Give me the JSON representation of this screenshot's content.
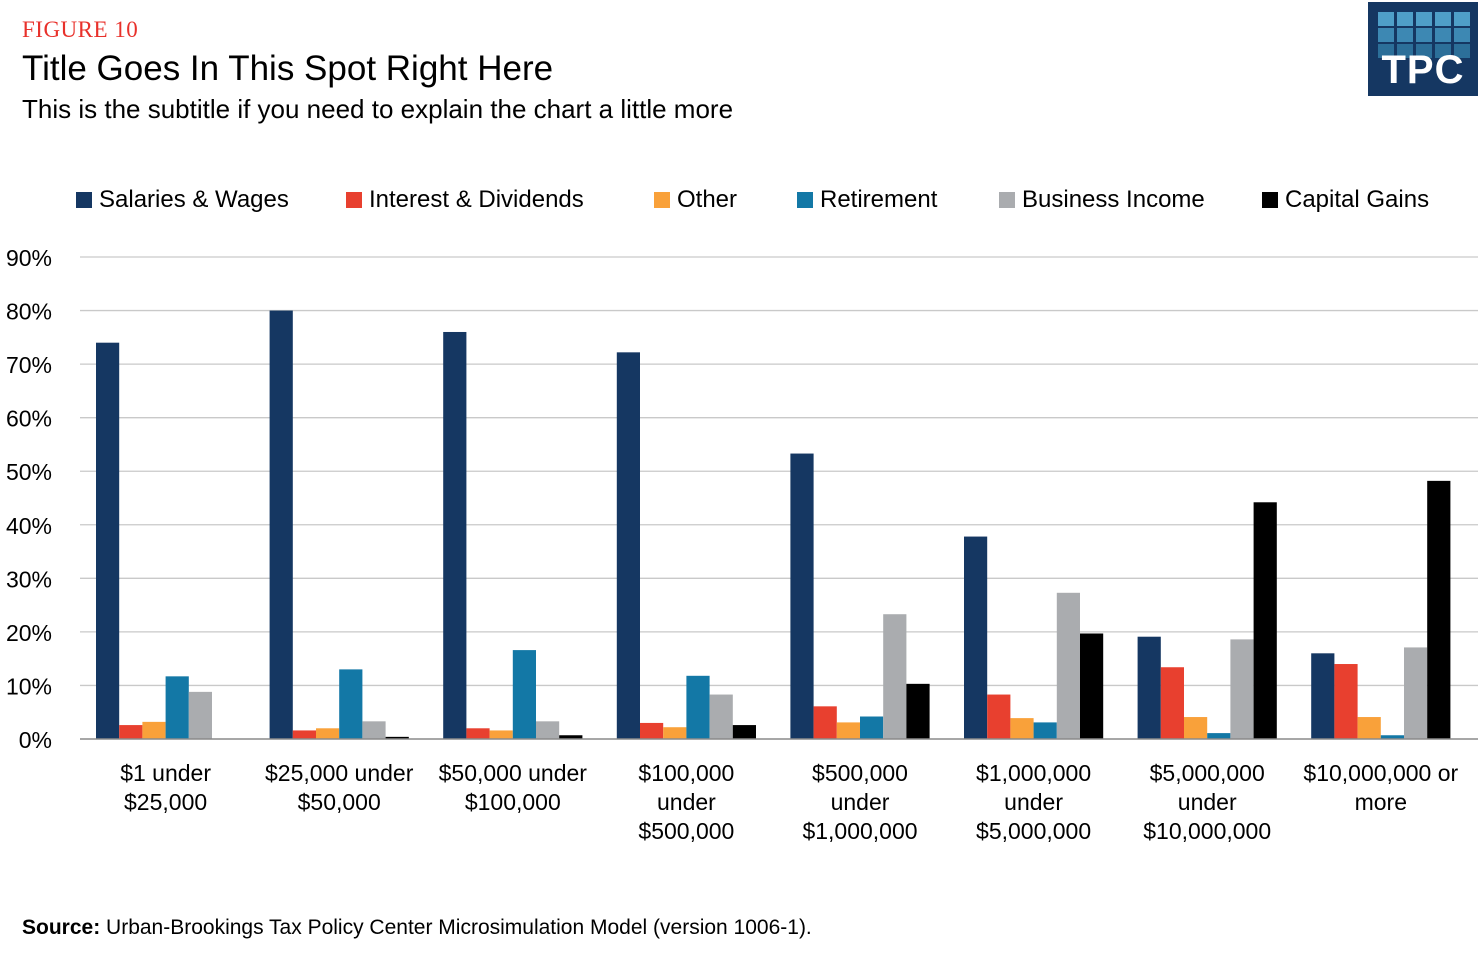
{
  "header": {
    "figure_label": "FIGURE 10",
    "title": "Title Goes In This Spot Right Here",
    "subtitle": "This is the subtitle if you need to explain the chart a little more"
  },
  "logo": {
    "text": "TPC",
    "background_color": "#153762"
  },
  "footer": {
    "source_label": "Source:",
    "source_text": "Urban-Brookings Tax Policy Center Microsimulation Model (version 1006-1)."
  },
  "chart_data": {
    "type": "bar",
    "title": "Title Goes In This Spot Right Here",
    "subtitle": "This is the subtitle if you need to explain the chart a little more",
    "xlabel": "",
    "ylabel": "",
    "ylim": [
      0,
      90
    ],
    "yticks": [
      "0%",
      "10%",
      "20%",
      "30%",
      "40%",
      "50%",
      "60%",
      "70%",
      "80%",
      "90%"
    ],
    "grid": true,
    "legend_position": "top",
    "categories": [
      [
        "$1 under",
        "$25,000"
      ],
      [
        "$25,000 under",
        "$50,000"
      ],
      [
        "$50,000 under",
        "$100,000"
      ],
      [
        "$100,000",
        "under",
        "$500,000"
      ],
      [
        "$500,000",
        "under",
        "$1,000,000"
      ],
      [
        "$1,000,000",
        "under",
        "$5,000,000"
      ],
      [
        "$5,000,000",
        "under",
        "$10,000,000"
      ],
      [
        "$10,000,000 or",
        "more"
      ]
    ],
    "series": [
      {
        "name": "Salaries & Wages",
        "color": "#153762",
        "values": [
          74,
          80,
          76,
          72.2,
          53.3,
          37.8,
          19.1,
          16
        ]
      },
      {
        "name": "Interest & Dividends",
        "color": "#e8402f",
        "values": [
          2.6,
          1.6,
          2,
          3,
          6.1,
          8.3,
          13.4,
          14
        ]
      },
      {
        "name": "Other",
        "color": "#f9a13a",
        "values": [
          3.2,
          2,
          1.6,
          2.2,
          3.1,
          3.9,
          4.1,
          4.1
        ]
      },
      {
        "name": "Retirement",
        "color": "#1378a6",
        "values": [
          11.7,
          13,
          16.6,
          11.8,
          4.2,
          3.1,
          1.1,
          0.7
        ]
      },
      {
        "name": "Business Income",
        "color": "#aaacaf",
        "values": [
          8.8,
          3.3,
          3.3,
          8.3,
          23.3,
          27.3,
          18.6,
          17.1
        ]
      },
      {
        "name": "Capital Gains",
        "color": "#000000",
        "values": [
          0,
          0.4,
          0.7,
          2.6,
          10.3,
          19.7,
          44.2,
          48.2
        ]
      }
    ]
  }
}
